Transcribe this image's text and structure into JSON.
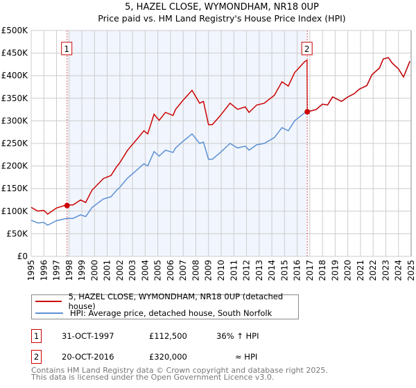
{
  "chart_data": {
    "type": "line",
    "title": "5, HAZEL CLOSE, WYMONDHAM, NR18 0UP",
    "subtitle": "Price paid vs. HM Land Registry's House Price Index (HPI)",
    "xlim": [
      1995,
      2025
    ],
    "ylim": [
      0,
      500000
    ],
    "yticks": [
      0,
      50000,
      100000,
      150000,
      200000,
      250000,
      300000,
      350000,
      400000,
      450000,
      500000
    ],
    "ytick_labels": [
      "£0",
      "£50K",
      "£100K",
      "£150K",
      "£200K",
      "£250K",
      "£300K",
      "£350K",
      "£400K",
      "£450K",
      "£500K"
    ],
    "xtick_labels": [
      "1995",
      "1996",
      "1997",
      "1998",
      "1999",
      "2000",
      "2001",
      "2002",
      "2003",
      "2004",
      "2005",
      "2006",
      "2007",
      "2008",
      "2009",
      "2010",
      "2011",
      "2012",
      "2013",
      "2014",
      "2015",
      "2016",
      "2017",
      "2018",
      "2019",
      "2020",
      "2021",
      "2022",
      "2023",
      "2024",
      "2025"
    ],
    "grid": true,
    "shaded_range": [
      1997.83,
      2016.8
    ],
    "series": [
      {
        "name": "HPI: Average price, detached house, South Norfolk",
        "color": "#5b8fd4",
        "x": [
          1995,
          1995.5,
          1996,
          1996.3,
          1997,
          1997.8,
          1998.3,
          1998.9,
          1999.3,
          1999.8,
          2000.7,
          2001.3,
          2001.7,
          2002,
          2002.6,
          2003.5,
          2003.9,
          2004.2,
          2004.7,
          2005.1,
          2005.6,
          2006.2,
          2006.4,
          2007,
          2007.7,
          2008.3,
          2008.6,
          2009,
          2009.3,
          2009.9,
          2010.7,
          2011.3,
          2011.9,
          2012.2,
          2012.8,
          2013.4,
          2014.2,
          2014.8,
          2015.3,
          2015.8,
          2016.6,
          2016.8,
          2017.5,
          2018,
          2018.4,
          2018.8,
          2019.5,
          2020,
          2020.5,
          2020.9,
          2021.5,
          2021.9,
          2022.5,
          2022.8,
          2023.2,
          2023.5,
          2024,
          2024.4,
          2024.9
        ],
        "y": [
          80000,
          74000,
          75000,
          69000,
          79000,
          84000,
          84000,
          92000,
          88000,
          108000,
          127000,
          132000,
          145000,
          153000,
          173000,
          195000,
          205000,
          200000,
          232000,
          222000,
          235000,
          230000,
          240000,
          255000,
          271000,
          250000,
          253000,
          215000,
          215000,
          229000,
          250000,
          240000,
          244000,
          235000,
          247000,
          250000,
          263000,
          285000,
          278000,
          300000,
          318000,
          320000,
          325000,
          337000,
          335000,
          353000,
          343000,
          353000,
          360000,
          370000,
          378000,
          402000,
          417000,
          437000,
          440000,
          428000,
          415000,
          397000,
          432000
        ]
      },
      {
        "name": "5, HAZEL CLOSE, WYMONDHAM, NR18 0UP (detached house)",
        "color": "#cc0000",
        "hpi_ratio_before_2016": 1.356
      }
    ],
    "sales": [
      {
        "label": "1",
        "x": 1997.83,
        "y": 112500
      },
      {
        "label": "2",
        "x": 2016.8,
        "y": 320000
      }
    ]
  },
  "legend": {
    "red": "5, HAZEL CLOSE, WYMONDHAM, NR18 0UP (detached house)",
    "blue": "HPI: Average price, detached house, South Norfolk"
  },
  "sales_table": [
    {
      "num": "1",
      "date": "31-OCT-1997",
      "price": "£112,500",
      "hpi": "36% ↑ HPI"
    },
    {
      "num": "2",
      "date": "20-OCT-2016",
      "price": "£320,000",
      "hpi": "≈ HPI"
    }
  ],
  "footer": {
    "line1": "Contains HM Land Registry data © Crown copyright and database right 2025.",
    "line2": "This data is licensed under the Open Government Licence v3.0."
  }
}
